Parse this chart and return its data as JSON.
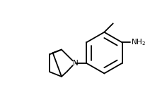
{
  "bg_color": "#ffffff",
  "line_color": "#000000",
  "lw": 1.3,
  "nh2_label": "NH$_2$",
  "n_label": "N",
  "figsize": [
    2.36,
    1.48
  ],
  "dpi": 100
}
